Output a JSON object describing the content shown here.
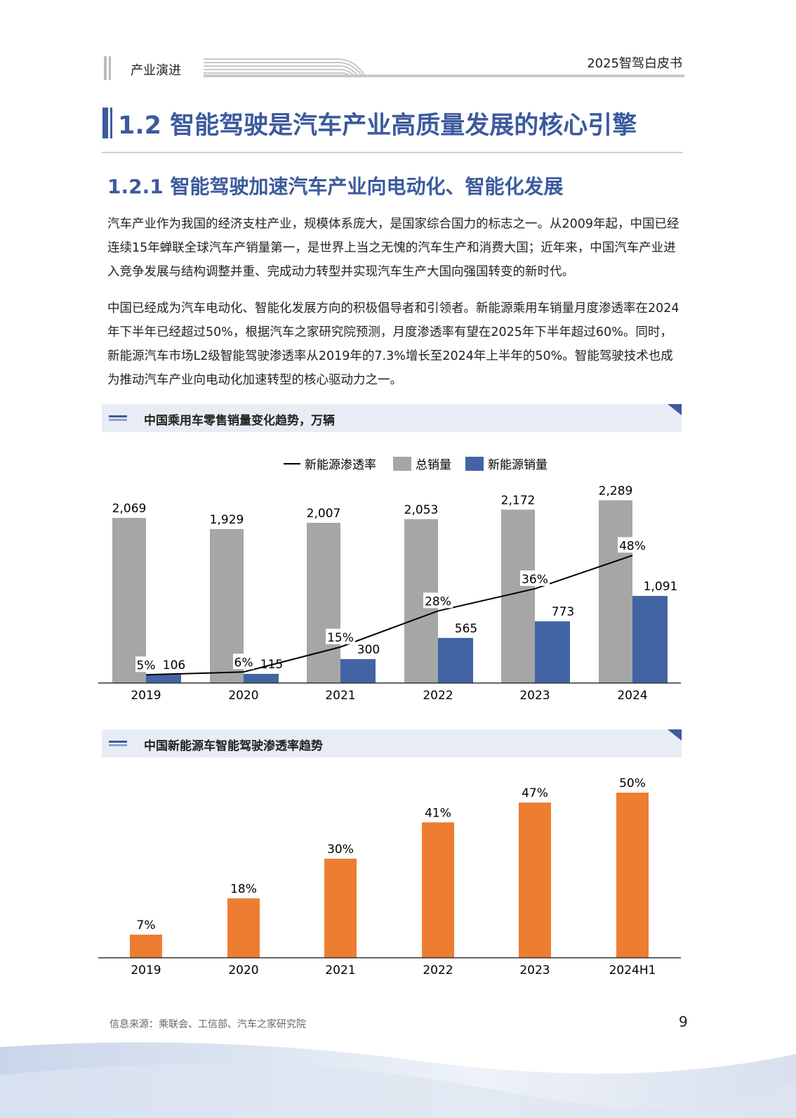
{
  "header": {
    "section": "产业演进",
    "doc_title": "2025智驾白皮书"
  },
  "heading1": "1.2 智能驾驶是汽车产业高质量发展的核心引擎",
  "heading2": "1.2.1 智能驾驶加速汽车产业向电动化、智能化发展",
  "paragraphs": [
    "汽车产业作为我国的经济支柱产业，规模体系庞大，是国家综合国力的标志之一。从2009年起，中国已经连续15年蝉联全球汽车产销量第一，是世界上当之无愧的汽车生产和消费大国；近年来，中国汽车产业进入竞争发展与结构调整并重、完成动力转型并实现汽车生产大国向强国转变的新时代。",
    "中国已经成为汽车电动化、智能化发展方向的积极倡导者和引领者。新能源乘用车销量月度渗透率在2024年下半年已经超过50%，根据汽车之家研究院预测，月度渗透率有望在2025年下半年超过60%。同时，新能源汽车市场L2级智能驾驶渗透率从2019年的7.3%增长至2024年上半年的50%。智能驾驶技术也成为推动汽车产业向电动化加速转型的核心驱动力之一。"
  ],
  "chart_data": [
    {
      "type": "bar",
      "title": "中国乘用车零售销量变化趋势，万辆",
      "categories": [
        "2019",
        "2020",
        "2021",
        "2022",
        "2023",
        "2024"
      ],
      "series": [
        {
          "name": "总销量",
          "kind": "bar",
          "color": "#a6a6a6",
          "values": [
            2069,
            1929,
            2007,
            2053,
            2172,
            2289
          ],
          "labels": [
            "2,069",
            "1,929",
            "2,007",
            "2,053",
            "2,172",
            "2,289"
          ]
        },
        {
          "name": "新能源销量",
          "kind": "bar",
          "color": "#4264a4",
          "values": [
            106,
            115,
            300,
            565,
            773,
            1091
          ],
          "labels": [
            "106",
            "115",
            "300",
            "565",
            "773",
            "1,091"
          ]
        },
        {
          "name": "新能源渗透率",
          "kind": "line",
          "color": "#000000",
          "values": [
            5,
            6,
            15,
            28,
            36,
            48
          ],
          "labels": [
            "5%",
            "6%",
            "15%",
            "28%",
            "36%",
            "48%"
          ]
        }
      ],
      "legend": "top",
      "grid": false
    },
    {
      "type": "bar",
      "title": "中国新能源车智能驾驶渗透率趋势",
      "categories": [
        "2019",
        "2020",
        "2021",
        "2022",
        "2023",
        "2024H1"
      ],
      "series": [
        {
          "color": "#ed7d31",
          "values": [
            7,
            18,
            30,
            41,
            47,
            50
          ],
          "labels": [
            "7%",
            "18%",
            "30%",
            "41%",
            "47%",
            "50%"
          ]
        }
      ],
      "legend": "none",
      "grid": false
    }
  ],
  "footer": {
    "source": "信息来源：乘联会、工信部、汽车之家研究院",
    "page": "9"
  }
}
